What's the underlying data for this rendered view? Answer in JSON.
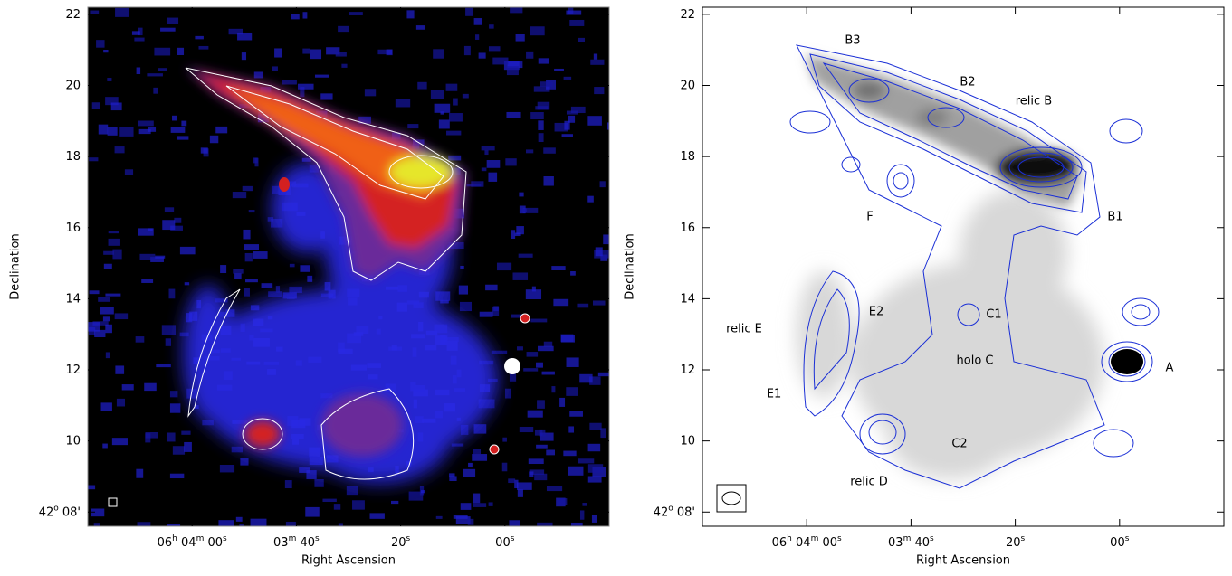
{
  "chart_data": [
    {
      "type": "image",
      "xlabel": "Right Ascension",
      "ylabel": "Declination",
      "xlim": [
        260,
        160
      ],
      "ylim": [
        7.6,
        22.2
      ],
      "xticks": [
        {
          "value": 240,
          "label": "06h 04m 00s"
        },
        {
          "value": 220,
          "label": "03m 40s"
        },
        {
          "value": 200,
          "label": "20s"
        },
        {
          "value": 180,
          "label": "00s"
        }
      ],
      "yticks": [
        {
          "value": 8,
          "label": "42o 08'"
        },
        10,
        12,
        14,
        16,
        18,
        20,
        22
      ]
    },
    {
      "type": "image",
      "xlabel": "Right Ascension",
      "ylabel": "Declination",
      "xlim": [
        260,
        160
      ],
      "ylim": [
        7.6,
        22.2
      ],
      "xticks": [
        {
          "value": 240,
          "label": "06h 04m 00s"
        },
        {
          "value": 220,
          "label": "03m 40s"
        },
        {
          "value": 200,
          "label": "20s"
        },
        {
          "value": 180,
          "label": "00s"
        }
      ],
      "yticks": [
        {
          "value": 8,
          "label": "42o 08'"
        },
        10,
        12,
        14,
        16,
        18,
        20,
        22
      ],
      "annotations": [
        "B3",
        "B2",
        "relic B",
        "B1",
        "F",
        "relic E",
        "E2",
        "E1",
        "C1",
        "holo C",
        "C2",
        "relic D",
        "A"
      ]
    }
  ]
}
